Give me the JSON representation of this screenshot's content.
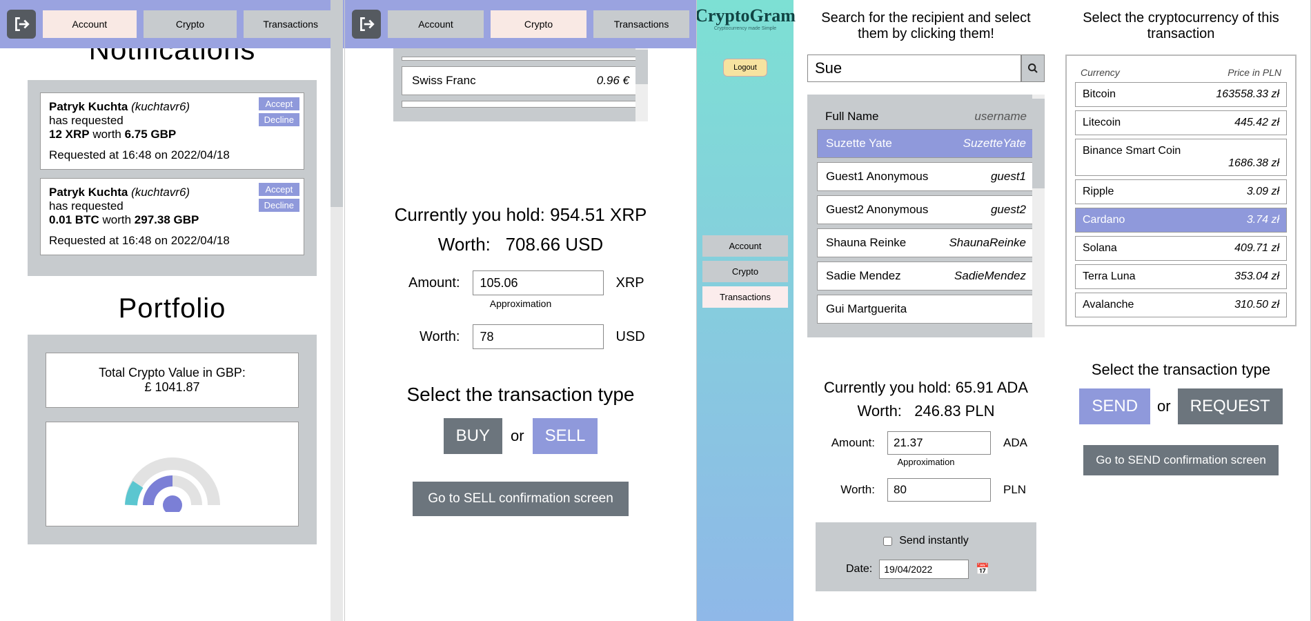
{
  "colors": {
    "accent": "#8f99db",
    "gray": "#6c757d",
    "panel": "#c7cbce",
    "navActive": "#f9e9e4"
  },
  "nav": {
    "account": "Account",
    "crypto": "Crypto",
    "transactions": "Transactions"
  },
  "p1": {
    "title": "Notifications",
    "notifs": [
      {
        "name": "Patryk Kuchta",
        "user": "(kuchtavr6)",
        "l2": "has requested",
        "amt": "12 XRP",
        "worth_lbl": "worth",
        "worth": "6.75 GBP",
        "ts": "Requested at 16:48 on 2022/04/18"
      },
      {
        "name": "Patryk Kuchta",
        "user": "(kuchtavr6)",
        "l2": "has requested",
        "amt": "0.01 BTC",
        "worth_lbl": "worth",
        "worth": "297.38 GBP",
        "ts": "Requested at 16:48 on 2022/04/18"
      }
    ],
    "accept": "Accept",
    "decline": "Decline",
    "portfolio_h": "Portfolio",
    "total_lbl": "Total Crypto Value in GBP:",
    "total_val": "£ 1041.87"
  },
  "p2": {
    "curr": {
      "name": "Swiss Franc",
      "price": "0.96 €"
    },
    "hold_pre": "Currently you hold:",
    "hold_val": "954.51 XRP",
    "worth_pre": "Worth:",
    "worth_val": "708.66 USD",
    "amount_lbl": "Amount:",
    "amount_val": "105.06",
    "amount_unit": "XRP",
    "approx": "Approximation",
    "worth_lbl": "Worth:",
    "worth_inp": "78",
    "worth_unit": "USD",
    "tx_h": "Select the transaction type",
    "buy": "BUY",
    "or": "or",
    "sell": "SELL",
    "confirm": "Go to SELL confirmation screen"
  },
  "p3": {
    "brand": "CryptoGram",
    "brand_sub": "Cryptocurrency made Simple",
    "logout": "Logout",
    "left": {
      "instr": "Search for the recipient and select them by clicking them!",
      "search": "Sue",
      "head_name": "Full Name",
      "head_user": "username",
      "users": [
        {
          "n": "Suzette Yate",
          "u": "SuzetteYate",
          "sel": true
        },
        {
          "n": "Guest1 Anonymous",
          "u": "guest1"
        },
        {
          "n": "Guest2 Anonymous",
          "u": "guest2"
        },
        {
          "n": "Shauna Reinke",
          "u": "ShaunaReinke"
        },
        {
          "n": "Sadie Mendez",
          "u": "SadieMendez"
        },
        {
          "n": "Gui Martguerita",
          "u": ""
        }
      ],
      "hold_pre": "Currently you hold:",
      "hold_val": "65.91 ADA",
      "worth_pre": "Worth:",
      "worth_val": "246.83 PLN",
      "amount_lbl": "Amount:",
      "amount_val": "21.37",
      "amount_unit": "ADA",
      "approx": "Approximation",
      "worth_lbl": "Worth:",
      "worth_inp": "80",
      "worth_unit": "PLN",
      "send_instant": "Send instantly",
      "date_lbl": "Date:",
      "date_val": "19/04/2022"
    },
    "right": {
      "instr": "Select the cryptocurrency of this transaction",
      "head_c": "Currency",
      "head_p": "Price in PLN",
      "cryptos": [
        {
          "n": "Bitcoin",
          "p": "163558.33 zł"
        },
        {
          "n": "Litecoin",
          "p": "445.42 zł"
        },
        {
          "n": "Binance Smart Coin",
          "p": "1686.38 zł",
          "multi": true
        },
        {
          "n": "Ripple",
          "p": "3.09 zł"
        },
        {
          "n": "Cardano",
          "p": "3.74 zł",
          "sel": true
        },
        {
          "n": "Solana",
          "p": "409.71 zł"
        },
        {
          "n": "Terra Luna",
          "p": "353.04 zł"
        },
        {
          "n": "Avalanche",
          "p": "310.50 zł"
        }
      ],
      "tx_h": "Select the transaction type",
      "send": "SEND",
      "or": "or",
      "request": "REQUEST",
      "confirm": "Go to SEND confirmation screen"
    }
  }
}
